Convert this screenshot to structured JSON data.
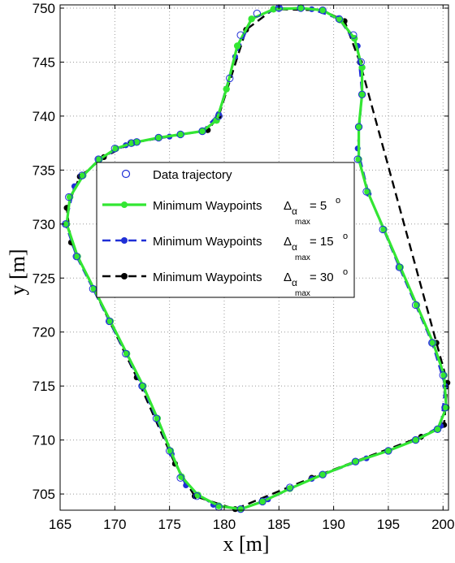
{
  "chart_data": {
    "type": "line",
    "title": "",
    "xlabel": "x [m]",
    "ylabel": "y [m]",
    "xlim": [
      165,
      200.5
    ],
    "ylim": [
      703.5,
      750.3
    ],
    "xticks": [
      165,
      170,
      175,
      180,
      185,
      190,
      195,
      200
    ],
    "yticks": [
      705,
      710,
      715,
      720,
      725,
      730,
      735,
      740,
      745,
      750
    ],
    "grid": true,
    "legend_position": "upper-left-inside",
    "legend": [
      {
        "label": "Data trajectory",
        "sub": "",
        "suffix": ""
      },
      {
        "label": "Minimum Waypoints",
        "sub": "max",
        "suffix": "= 5",
        "alpha": "Δ",
        "alpha_sub": "α",
        "deg": "o"
      },
      {
        "label": "Minimum Waypoints",
        "sub": "max",
        "suffix": "= 15",
        "alpha": "Δ",
        "alpha_sub": "α",
        "deg": "o"
      },
      {
        "label": "Minimum Waypoints",
        "sub": "max",
        "suffix": "= 30",
        "alpha": "Δ",
        "alpha_sub": "α",
        "deg": "o"
      }
    ],
    "series": [
      {
        "name": "Data trajectory",
        "color": "#1f2fd6",
        "style": "markers-open-circle",
        "points": [
          [
            172.0,
            737.6
          ],
          [
            174.0,
            738.0
          ],
          [
            176.0,
            738.3
          ],
          [
            178.0,
            738.6
          ],
          [
            179.5,
            740.0
          ],
          [
            180.5,
            743.5
          ],
          [
            181.5,
            747.5
          ],
          [
            183.0,
            749.5
          ],
          [
            185.0,
            750.0
          ],
          [
            187.0,
            750.0
          ],
          [
            189.0,
            749.8
          ],
          [
            190.5,
            749.0
          ],
          [
            191.8,
            747.5
          ],
          [
            192.5,
            745.0
          ],
          [
            192.6,
            742.0
          ],
          [
            192.3,
            739.0
          ],
          [
            192.2,
            736.0
          ],
          [
            193.0,
            733.0
          ],
          [
            194.5,
            729.5
          ],
          [
            196.0,
            726.0
          ],
          [
            197.5,
            722.5
          ],
          [
            199.0,
            719.0
          ],
          [
            200.0,
            716.0
          ],
          [
            200.2,
            713.0
          ],
          [
            199.5,
            711.0
          ],
          [
            197.5,
            710.0
          ],
          [
            195.0,
            709.0
          ],
          [
            192.0,
            708.0
          ],
          [
            189.0,
            706.8
          ],
          [
            186.0,
            705.6
          ],
          [
            183.5,
            704.3
          ],
          [
            181.5,
            703.6
          ],
          [
            179.5,
            703.8
          ],
          [
            177.5,
            704.8
          ],
          [
            176.0,
            706.5
          ],
          [
            175.0,
            709.0
          ],
          [
            173.8,
            712.0
          ],
          [
            172.5,
            715.0
          ],
          [
            171.0,
            718.0
          ],
          [
            169.5,
            721.0
          ],
          [
            168.0,
            724.0
          ],
          [
            166.5,
            727.0
          ],
          [
            165.5,
            730.0
          ],
          [
            165.8,
            732.5
          ],
          [
            167.0,
            734.5
          ],
          [
            168.5,
            736.0
          ],
          [
            170.0,
            737.0
          ],
          [
            171.5,
            737.5
          ]
        ]
      },
      {
        "name": "Minimum Waypoints Δα max = 5°",
        "color": "#33e633",
        "style": "solid",
        "points": [
          [
            172.0,
            737.6
          ],
          [
            174.0,
            738.0
          ],
          [
            176.0,
            738.3
          ],
          [
            178.0,
            738.6
          ],
          [
            179.3,
            739.6
          ],
          [
            180.2,
            742.5
          ],
          [
            181.2,
            746.5
          ],
          [
            182.5,
            749.0
          ],
          [
            184.5,
            749.9
          ],
          [
            187.0,
            750.0
          ],
          [
            189.0,
            749.8
          ],
          [
            190.6,
            748.9
          ],
          [
            191.9,
            747.2
          ],
          [
            192.6,
            744.5
          ],
          [
            192.6,
            742.0
          ],
          [
            192.3,
            739.0
          ],
          [
            192.3,
            736.0
          ],
          [
            193.1,
            733.0
          ],
          [
            194.6,
            729.5
          ],
          [
            196.1,
            726.0
          ],
          [
            197.6,
            722.5
          ],
          [
            199.1,
            719.0
          ],
          [
            200.1,
            716.0
          ],
          [
            200.3,
            713.0
          ],
          [
            199.5,
            711.0
          ],
          [
            197.5,
            710.0
          ],
          [
            195.0,
            709.0
          ],
          [
            192.0,
            708.0
          ],
          [
            189.0,
            706.8
          ],
          [
            186.0,
            705.5
          ],
          [
            183.5,
            704.3
          ],
          [
            181.5,
            703.6
          ],
          [
            179.5,
            703.9
          ],
          [
            177.6,
            704.9
          ],
          [
            176.1,
            706.6
          ],
          [
            175.1,
            709.0
          ],
          [
            173.9,
            712.0
          ],
          [
            172.6,
            715.0
          ],
          [
            171.1,
            718.0
          ],
          [
            169.6,
            721.0
          ],
          [
            168.1,
            724.0
          ],
          [
            166.6,
            727.0
          ],
          [
            165.6,
            730.0
          ],
          [
            165.9,
            732.5
          ],
          [
            167.1,
            734.5
          ],
          [
            168.6,
            736.0
          ],
          [
            170.1,
            737.0
          ],
          [
            171.6,
            737.5
          ]
        ]
      },
      {
        "name": "Minimum Waypoints Δα max = 15°",
        "color": "#1f2fd6",
        "style": "dashed",
        "points": [
          [
            172.0,
            737.6
          ],
          [
            175.0,
            738.1
          ],
          [
            178.0,
            738.6
          ],
          [
            179.5,
            740.2
          ],
          [
            181.0,
            745.5
          ],
          [
            182.5,
            749.0
          ],
          [
            185.0,
            750.0
          ],
          [
            188.0,
            749.9
          ],
          [
            190.5,
            749.0
          ],
          [
            192.2,
            746.5
          ],
          [
            192.6,
            742.0
          ],
          [
            192.2,
            737.0
          ],
          [
            193.2,
            732.8
          ],
          [
            196.0,
            726.0
          ],
          [
            199.0,
            719.0
          ],
          [
            200.2,
            715.0
          ],
          [
            199.8,
            711.3
          ],
          [
            197.5,
            710.0
          ],
          [
            193.0,
            708.3
          ],
          [
            188.0,
            706.4
          ],
          [
            184.0,
            704.5
          ],
          [
            181.5,
            703.6
          ],
          [
            179.0,
            704.0
          ],
          [
            176.5,
            705.8
          ],
          [
            175.2,
            708.7
          ],
          [
            172.5,
            715.0
          ],
          [
            169.5,
            721.0
          ],
          [
            166.5,
            727.0
          ],
          [
            165.5,
            730.0
          ],
          [
            166.3,
            733.5
          ],
          [
            168.5,
            736.0
          ],
          [
            171.0,
            737.3
          ]
        ]
      },
      {
        "name": "Minimum Waypoints Δα max = 30°",
        "color": "#000000",
        "style": "dashed",
        "points": [
          [
            172.0,
            737.6
          ],
          [
            178.5,
            738.7
          ],
          [
            179.5,
            740.0
          ],
          [
            182.0,
            748.0
          ],
          [
            184.5,
            749.9
          ],
          [
            189.0,
            749.8
          ],
          [
            191.0,
            748.8
          ],
          [
            192.4,
            745.0
          ],
          [
            199.4,
            719.0
          ],
          [
            200.4,
            715.3
          ],
          [
            200.1,
            711.4
          ],
          [
            198.0,
            710.3
          ],
          [
            188.0,
            706.5
          ],
          [
            181.0,
            703.6
          ],
          [
            177.3,
            704.8
          ],
          [
            175.5,
            707.8
          ],
          [
            172.0,
            715.8
          ],
          [
            166.0,
            728.3
          ],
          [
            165.6,
            731.5
          ],
          [
            166.8,
            734.4
          ],
          [
            169.0,
            736.2
          ],
          [
            171.5,
            737.5
          ]
        ]
      }
    ]
  }
}
